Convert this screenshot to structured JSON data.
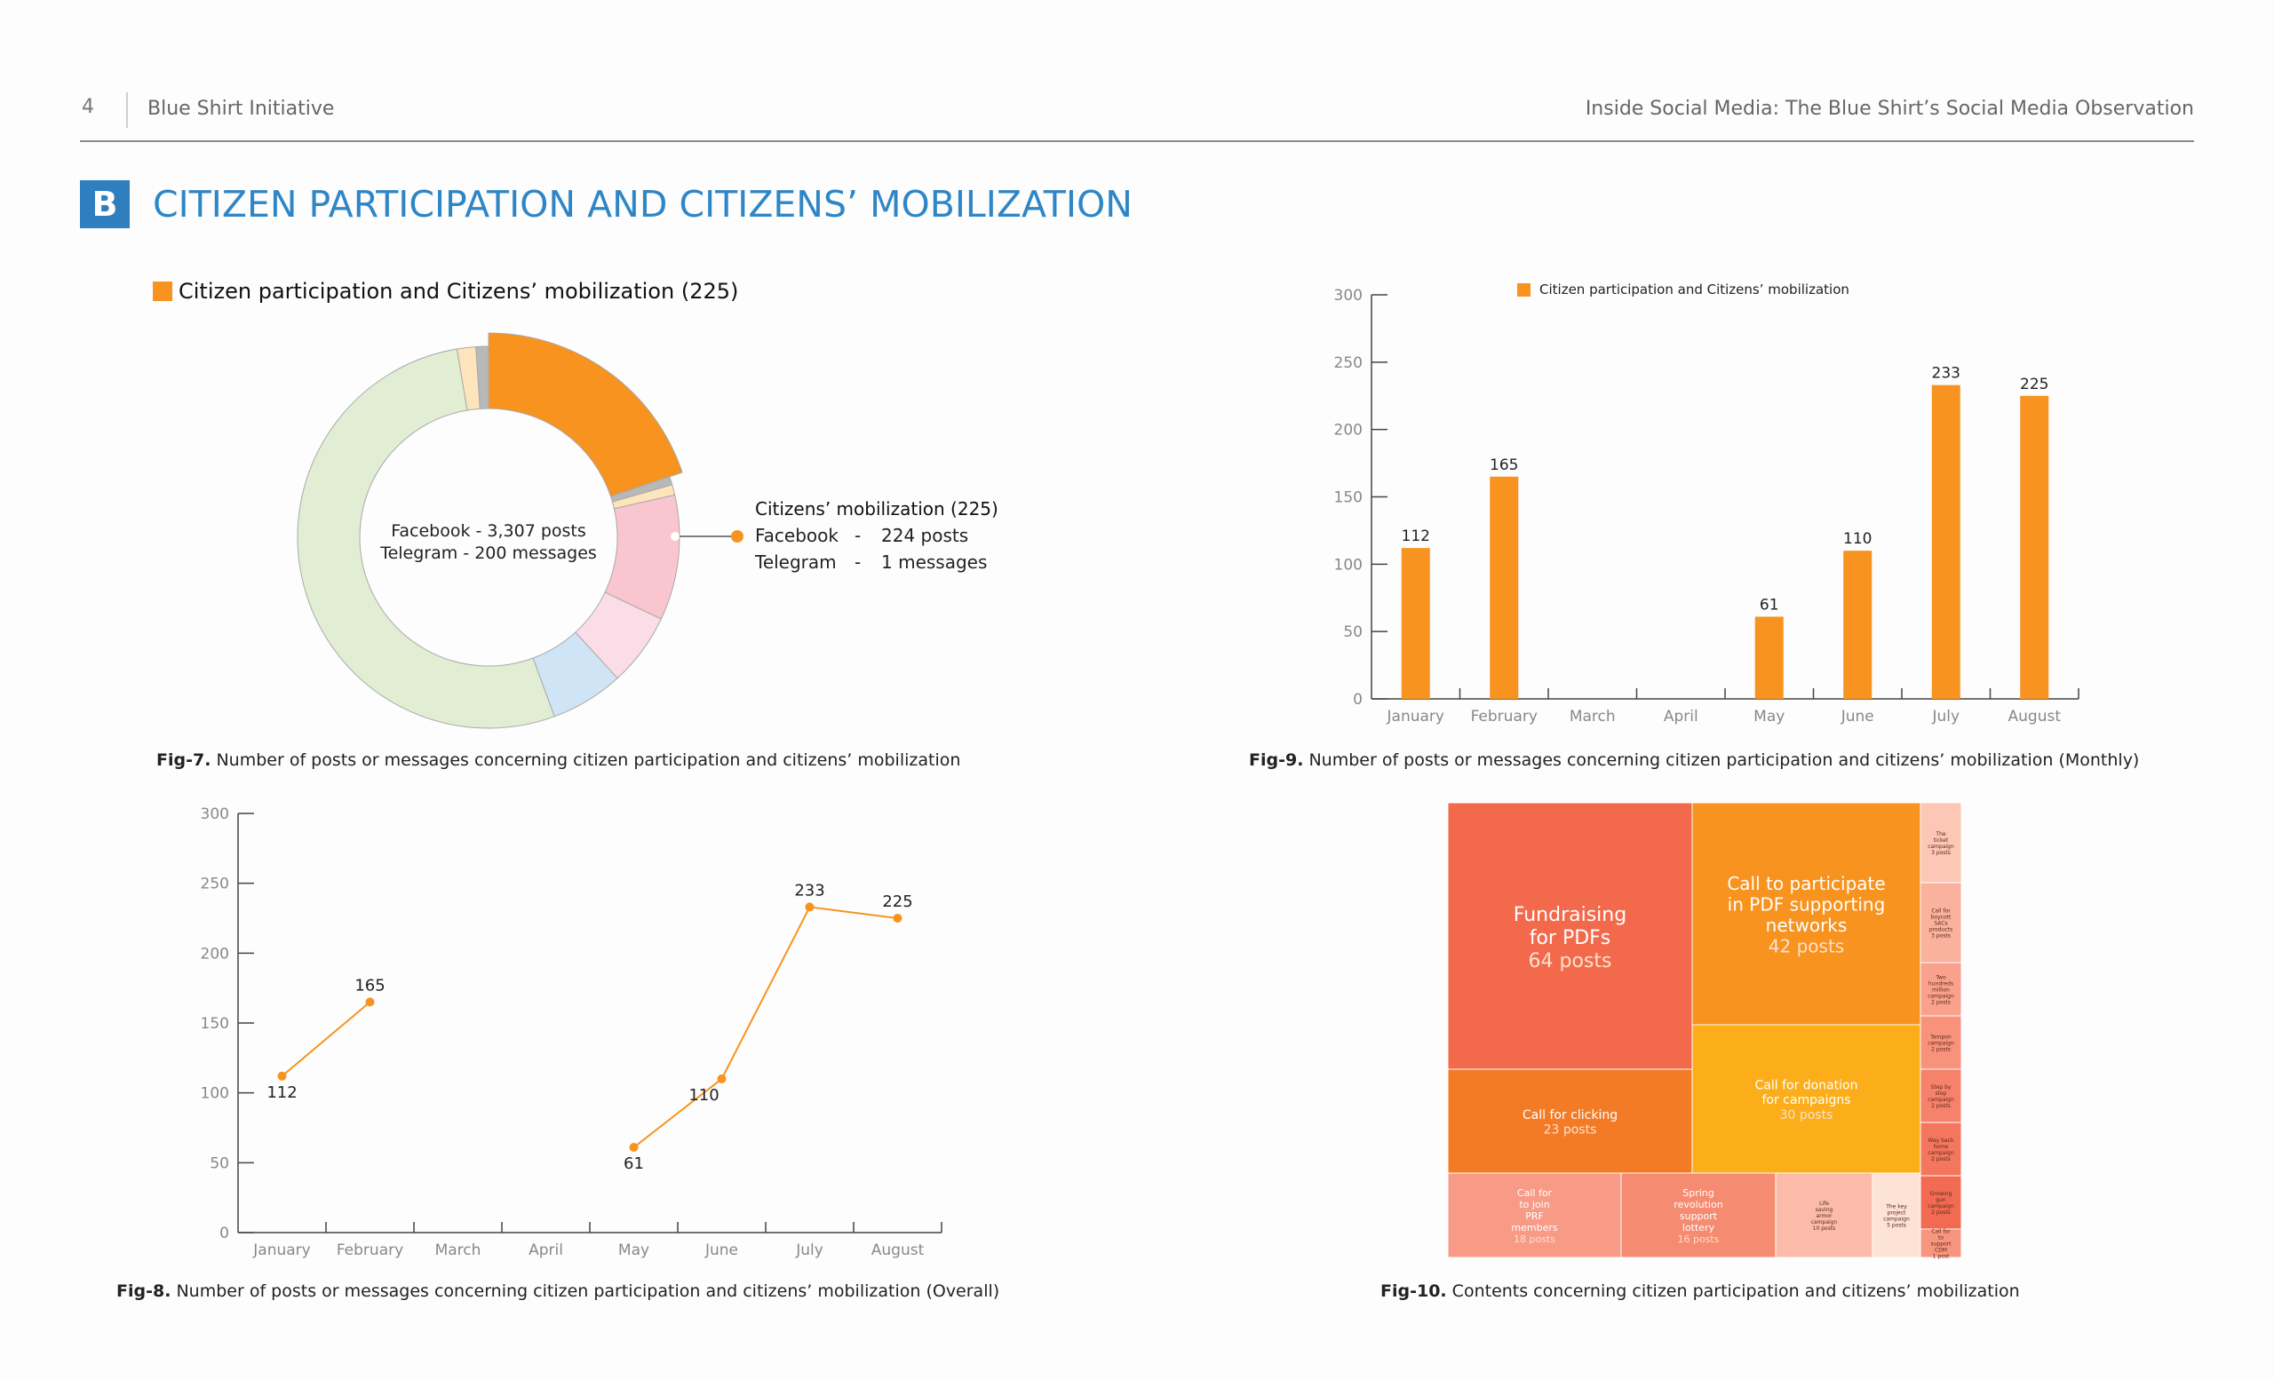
{
  "header": {
    "page_number": "4",
    "organization": "Blue Shirt Initiative",
    "document_title": "Inside Social Media: The Blue Shirt’s Social Media Observation"
  },
  "section": {
    "letter": "B",
    "title": "CITIZEN PARTICIPATION AND CITIZENS’ MOBILIZATION"
  },
  "colors": {
    "accent": "#f7931e",
    "title_blue": "#2f86c6",
    "badge_blue": "#2f7fbf"
  },
  "figures": {
    "fig7": {
      "id": "Fig-7.",
      "text": " Number of posts or messages concerning citizen participation and citizens’ mobilization"
    },
    "fig8": {
      "id": "Fig-8.",
      "text": " Number of posts or messages concerning citizen participation and citizens’ mobilization (Overall)"
    },
    "fig9": {
      "id": "Fig-9.",
      "text": " Number of posts or messages concerning citizen participation and citizens’ mobilization (Monthly)"
    },
    "fig10": {
      "id": "Fig-10.",
      "text": " Contents concerning citizen participation and citizens’ mobilization"
    }
  },
  "chart_data": [
    {
      "type": "pie",
      "legend": "Citizen participation and Citizens’ mobilization (225)",
      "center_lines": [
        "Facebook - 3,307 posts",
        "Telegram - 200 messages"
      ],
      "callout": {
        "title": "Citizens’ mobilization (225)",
        "rows": [
          {
            "platform": "Facebook",
            "sep": "-",
            "value": "224 posts"
          },
          {
            "platform": "Telegram",
            "sep": "-",
            "value": "1 messages"
          }
        ]
      },
      "slices": [
        {
          "label": "Citizens’ mobilization",
          "value": 225,
          "color": "#f7931e"
        },
        {
          "value": 8,
          "color": "#b8b8b8"
        },
        {
          "value": 10,
          "color": "#fde4bd"
        },
        {
          "value": 120,
          "color": "#f9c6cf"
        },
        {
          "value": 70,
          "color": "#fbdde8"
        },
        {
          "value": 70,
          "color": "#cfe5f6"
        },
        {
          "value": 600,
          "color": "#e2eed3"
        },
        {
          "value": 18,
          "color": "#fde4bd"
        },
        {
          "value": 12,
          "color": "#b8b8b8"
        }
      ]
    },
    {
      "type": "line",
      "categories": [
        "January",
        "February",
        "March",
        "April",
        "May",
        "June",
        "July",
        "August"
      ],
      "values": [
        112,
        165,
        null,
        null,
        61,
        110,
        233,
        225
      ],
      "labels": [
        "112",
        "165",
        "",
        "",
        "61",
        "110",
        "233",
        "225"
      ],
      "ylim": [
        0,
        300
      ],
      "yticks": [
        0,
        50,
        100,
        150,
        200,
        250,
        300
      ],
      "color": "#f7931e",
      "grid": false
    },
    {
      "type": "bar",
      "legend": "Citizen participation and Citizens’ mobilization",
      "categories": [
        "January",
        "February",
        "March",
        "April",
        "May",
        "June",
        "July",
        "August"
      ],
      "values": [
        112,
        165,
        null,
        null,
        61,
        110,
        233,
        225
      ],
      "labels": [
        "112",
        "165",
        "",
        "",
        "61",
        "110",
        "233",
        "225"
      ],
      "ylim": [
        0,
        300
      ],
      "yticks": [
        0,
        50,
        100,
        150,
        200,
        250,
        300
      ],
      "color": "#f7931e",
      "grid": false
    },
    {
      "type": "treemap",
      "items": [
        {
          "label": "Fundraising for PDFs",
          "value": 64,
          "count": "64 posts",
          "color": "#f26a4b"
        },
        {
          "label": "Call to participate in PDF supporting networks",
          "value": 42,
          "count": "42 posts",
          "color": "#f7931e"
        },
        {
          "label": "Call for clicking",
          "value": 23,
          "count": "23 posts",
          "color": "#f47b26"
        },
        {
          "label": "Call for donation for campaigns",
          "value": 30,
          "count": "30 posts",
          "color": "#fbae1a"
        },
        {
          "label": "Call for to join PRF members",
          "value": 18,
          "count": "18 posts",
          "color": "#f79b87"
        },
        {
          "label": "Spring revolution support lottery",
          "value": 16,
          "count": "16 posts",
          "color": "#f58b71"
        },
        {
          "label": "Life saving armor campaign",
          "value": 10,
          "count": "10 posts",
          "color": "#fbbba8"
        },
        {
          "label": "The key project campaign",
          "value": 5,
          "count": "5 posts",
          "color": "#fde2d6"
        },
        {
          "label": "The ticket campaign",
          "value": 3,
          "count": "3 posts",
          "color": "#fcc7b4"
        },
        {
          "label": "Call for boycott SACs products",
          "value": 3,
          "count": "3 posts",
          "color": "#fab19d"
        },
        {
          "label": "Two hundreds million campaign",
          "value": 2,
          "count": "2 posts",
          "color": "#f9a18c"
        },
        {
          "label": "Tampon campaign",
          "value": 2,
          "count": "2 posts",
          "color": "#f8927b"
        },
        {
          "label": "Step by step campaign",
          "value": 2,
          "count": "2 posts",
          "color": "#f6826b"
        },
        {
          "label": "Way back home campaign",
          "value": 2,
          "count": "2 posts",
          "color": "#f5765e"
        },
        {
          "label": "Growing gun campaign",
          "value": 2,
          "count": "2 posts",
          "color": "#f36a52"
        },
        {
          "label": "Call for to support CDM",
          "value": 1,
          "count": "1 post",
          "color": "#f7957f"
        }
      ]
    }
  ]
}
